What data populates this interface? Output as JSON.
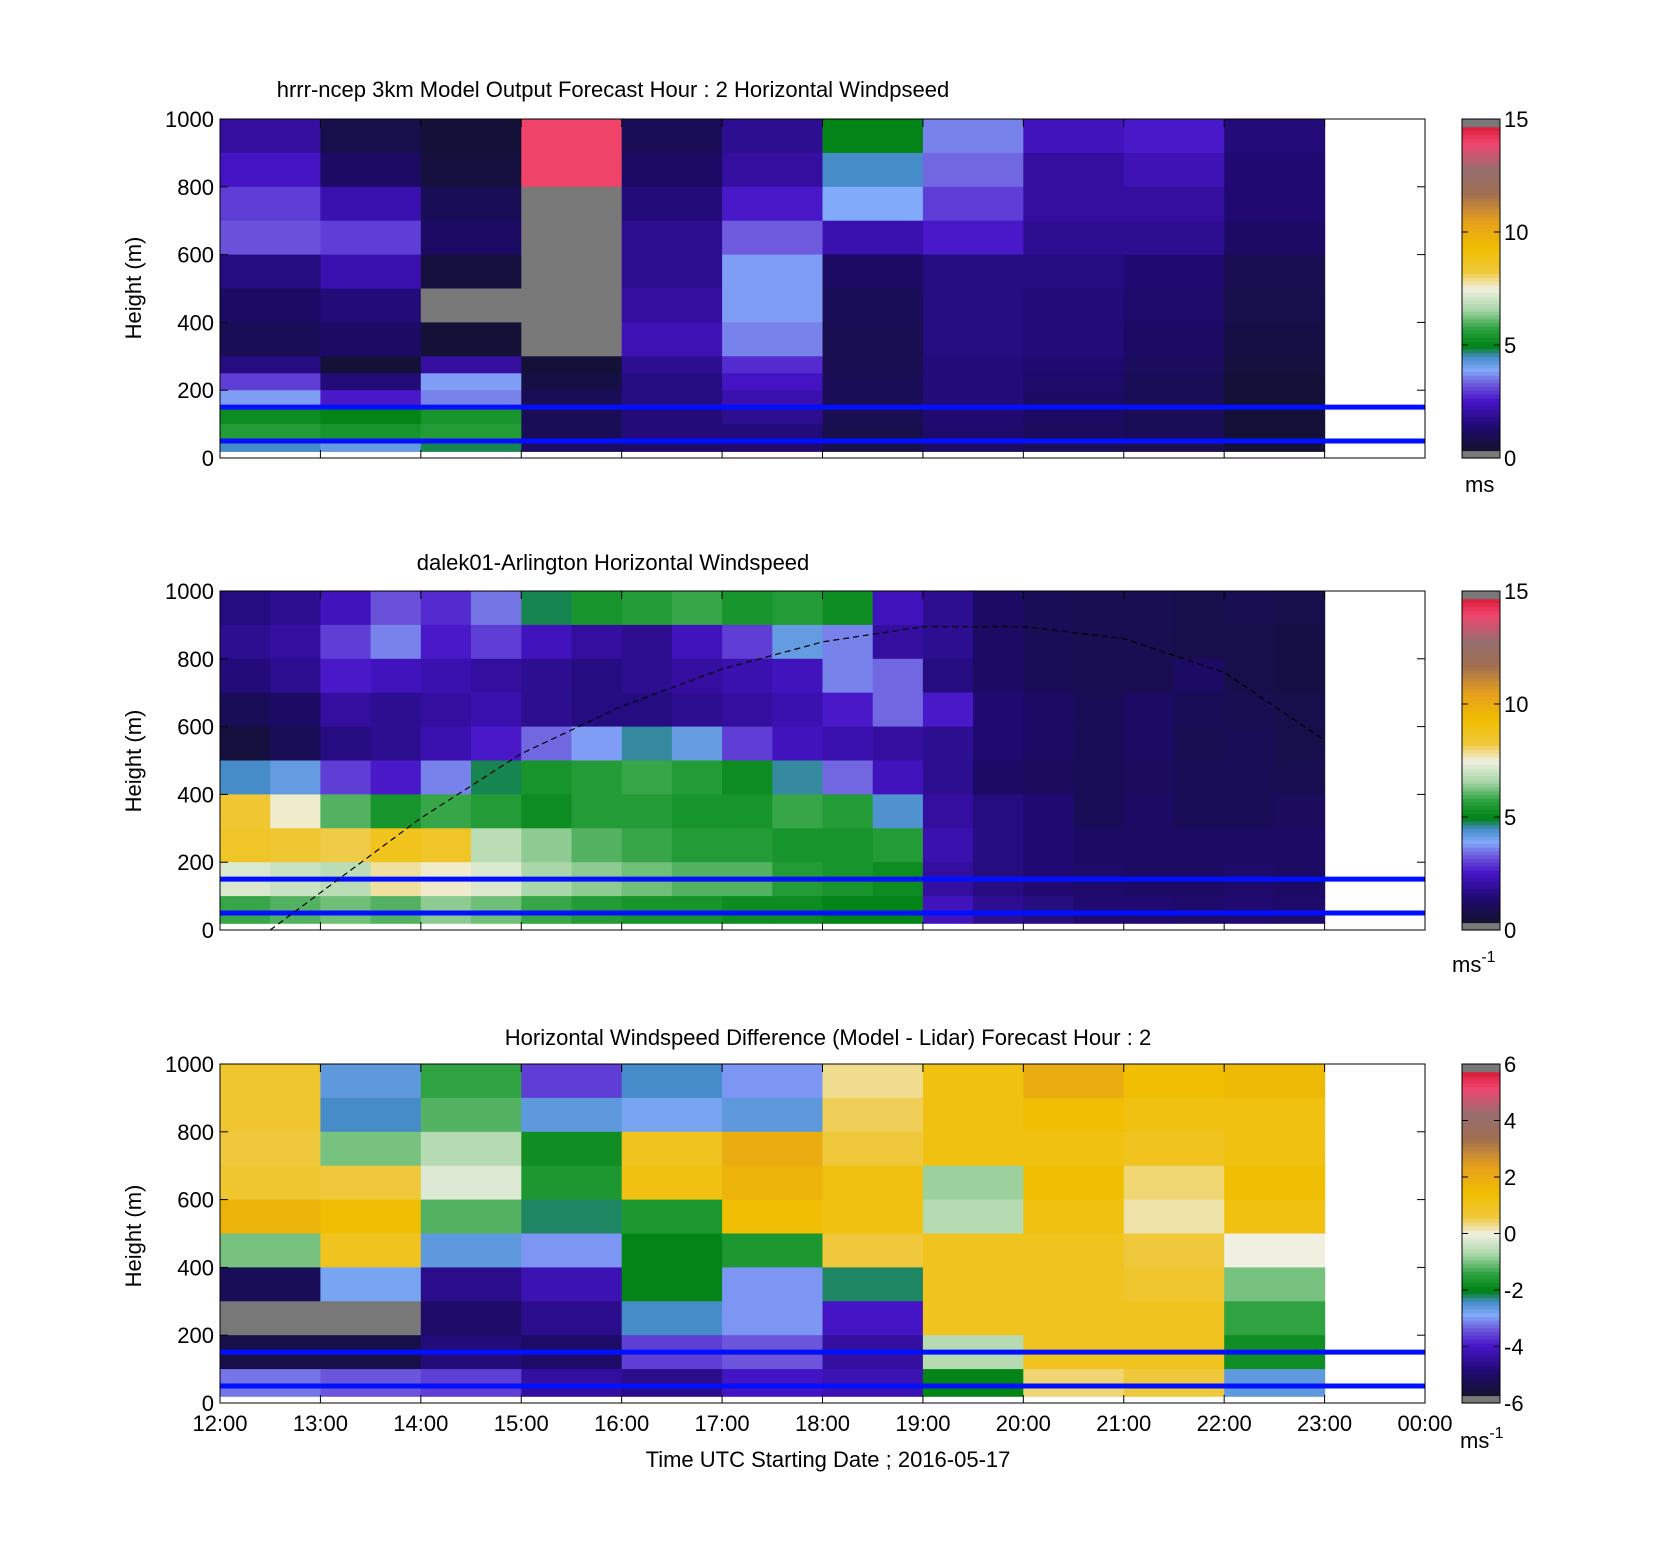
{
  "figure": {
    "xlabel": "Time UTC  Starting Date ; 2016-05-17",
    "xtick_labels": [
      "12:00",
      "13:00",
      "14:00",
      "15:00",
      "16:00",
      "17:00",
      "18:00",
      "19:00",
      "20:00",
      "21:00",
      "22:00",
      "23:00",
      "00:00"
    ]
  },
  "chart_data": [
    {
      "type": "heatmap",
      "title": "hrrr-ncep 3km Model Output   Forecast Hour : 2 Horizontal Windpseed",
      "ylabel": "Height (m)",
      "x": [
        "12:00",
        "13:00",
        "14:00",
        "15:00",
        "16:00",
        "17:00",
        "18:00",
        "19:00",
        "20:00",
        "21:00",
        "22:00"
      ],
      "y_bin_tops_m": [
        1000,
        900,
        800,
        700,
        600,
        500,
        400,
        300,
        250,
        200,
        150,
        100,
        50
      ],
      "values_ms": [
        [
          2.0,
          0.8,
          0.5,
          14.0,
          1.0,
          1.8,
          5.0,
          3.6,
          2.4,
          2.6,
          1.5
        ],
        [
          2.5,
          1.2,
          0.6,
          14.0,
          1.2,
          2.0,
          4.5,
          3.4,
          2.0,
          2.3,
          1.4
        ],
        [
          3.0,
          2.2,
          1.0,
          0.2,
          1.5,
          2.6,
          3.9,
          3.0,
          2.0,
          2.0,
          1.4
        ],
        [
          3.2,
          3.0,
          1.2,
          0.3,
          1.8,
          3.3,
          2.2,
          2.6,
          1.8,
          1.8,
          1.2
        ],
        [
          1.6,
          2.2,
          0.6,
          0.3,
          1.8,
          3.8,
          1.2,
          1.6,
          1.6,
          1.4,
          0.9
        ],
        [
          1.2,
          1.5,
          0.3,
          0.2,
          2.0,
          3.8,
          1.0,
          1.6,
          1.5,
          1.3,
          0.8
        ],
        [
          1.0,
          1.2,
          0.5,
          0.1,
          2.3,
          3.6,
          0.9,
          1.6,
          1.5,
          1.2,
          0.7
        ],
        [
          1.6,
          0.5,
          2.0,
          0.5,
          1.8,
          2.8,
          0.9,
          1.5,
          1.4,
          1.1,
          0.6
        ],
        [
          3.0,
          1.5,
          3.8,
          0.7,
          1.6,
          2.5,
          1.0,
          1.5,
          1.3,
          1.0,
          0.5
        ],
        [
          3.8,
          2.6,
          3.6,
          1.0,
          1.6,
          2.2,
          1.0,
          1.5,
          1.2,
          1.0,
          0.5
        ],
        [
          5.2,
          5.0,
          5.4,
          1.0,
          1.5,
          1.8,
          0.9,
          1.4,
          1.2,
          1.0,
          0.5
        ],
        [
          5.6,
          5.4,
          5.6,
          1.0,
          1.5,
          1.5,
          0.8,
          1.3,
          1.1,
          1.0,
          0.5
        ],
        [
          4.5,
          4.2,
          4.8,
          1.2,
          1.3,
          1.4,
          0.8,
          1.2,
          1.0,
          0.9,
          0.5
        ]
      ],
      "colorbar": {
        "min": 0,
        "max": 15,
        "ticks": [
          0,
          5,
          10,
          15
        ],
        "unit": "ms"
      },
      "reference_heights_m": [
        150,
        50
      ],
      "ylim": [
        0,
        1000
      ],
      "yticks": [
        0,
        200,
        400,
        600,
        800,
        1000
      ]
    },
    {
      "type": "heatmap",
      "title": "dalek01-Arlington  Horizontal Windspeed",
      "ylabel": "Height (m)",
      "x_range": [
        "12:00",
        "23:00"
      ],
      "y_bin_tops_m": [
        1000,
        900,
        800,
        700,
        600,
        500,
        400,
        300,
        200,
        100
      ],
      "x_bins": [
        "12:00",
        "12:30",
        "13:00",
        "13:30",
        "14:00",
        "14:30",
        "15:00",
        "15:30",
        "16:00",
        "16:30",
        "17:00",
        "17:30",
        "18:00",
        "18:30",
        "19:00",
        "19:30",
        "20:00",
        "20:30",
        "21:00",
        "21:30",
        "22:00",
        "22:30"
      ],
      "values_ms": [
        [
          1.6,
          1.8,
          2.4,
          3.2,
          2.8,
          3.5,
          4.8,
          5.4,
          5.6,
          5.8,
          5.4,
          5.6,
          5.2,
          2.4,
          1.8,
          1.2,
          1.0,
          0.9,
          0.9,
          0.8,
          0.9,
          0.8
        ],
        [
          1.8,
          2.0,
          3.0,
          3.6,
          2.6,
          3.0,
          2.4,
          2.0,
          1.8,
          2.4,
          3.0,
          4.2,
          3.6,
          2.0,
          1.8,
          1.2,
          1.0,
          0.9,
          0.9,
          0.8,
          0.8,
          0.7
        ],
        [
          1.5,
          1.8,
          2.6,
          2.4,
          2.2,
          2.0,
          1.8,
          1.6,
          1.8,
          2.0,
          2.2,
          2.4,
          3.6,
          3.4,
          1.6,
          1.2,
          1.0,
          0.9,
          0.9,
          1.2,
          0.8,
          0.7
        ],
        [
          1.0,
          1.2,
          2.0,
          1.8,
          2.0,
          2.2,
          1.8,
          1.6,
          1.6,
          1.8,
          2.0,
          2.2,
          2.6,
          3.4,
          2.6,
          1.4,
          1.2,
          1.0,
          1.2,
          1.0,
          0.9,
          0.8
        ],
        [
          0.6,
          1.0,
          1.6,
          1.8,
          2.2,
          2.6,
          3.4,
          3.8,
          4.6,
          4.2,
          3.0,
          2.4,
          2.2,
          2.0,
          1.8,
          1.4,
          1.2,
          1.0,
          1.2,
          0.9,
          1.0,
          0.8
        ],
        [
          4.5,
          4.2,
          3.0,
          2.6,
          3.6,
          4.8,
          5.4,
          5.6,
          5.8,
          5.6,
          5.2,
          4.6,
          3.4,
          2.4,
          1.8,
          1.2,
          1.1,
          1.0,
          1.1,
          1.0,
          1.0,
          0.9
        ],
        [
          8.4,
          7.6,
          6.0,
          5.4,
          5.8,
          5.6,
          5.2,
          5.6,
          5.6,
          5.4,
          5.4,
          5.8,
          5.6,
          4.4,
          2.0,
          1.6,
          1.4,
          1.0,
          1.2,
          1.0,
          1.0,
          1.1
        ],
        [
          8.6,
          8.4,
          8.2,
          8.8,
          8.6,
          6.8,
          6.4,
          6.0,
          5.8,
          5.6,
          5.6,
          5.4,
          5.4,
          5.6,
          2.2,
          1.6,
          1.4,
          1.2,
          1.2,
          1.2,
          1.2,
          1.2
        ],
        [
          7.2,
          7.0,
          6.8,
          7.8,
          7.6,
          7.2,
          6.6,
          6.4,
          6.2,
          6.0,
          6.0,
          5.6,
          5.4,
          5.2,
          2.0,
          1.6,
          1.4,
          1.3,
          1.2,
          1.2,
          1.3,
          1.2
        ],
        [
          5.8,
          6.0,
          6.2,
          6.0,
          6.4,
          6.2,
          5.8,
          5.6,
          5.4,
          5.4,
          5.2,
          5.2,
          5.0,
          5.0,
          2.4,
          1.8,
          1.6,
          1.4,
          1.4,
          1.3,
          1.4,
          1.3
        ]
      ],
      "colorbar": {
        "min": 0,
        "max": 15,
        "ticks": [
          0,
          5,
          10,
          15
        ],
        "unit": "ms",
        "unit_exponent": "-1"
      },
      "reference_heights_m": [
        150,
        50
      ],
      "curve": {
        "style": "dashed",
        "x": [
          "12:30",
          "13:00",
          "14:00",
          "15:00",
          "16:00",
          "17:00",
          "18:00",
          "19:00",
          "20:00",
          "21:00",
          "22:00",
          "23:00"
        ],
        "y_m": [
          0,
          110,
          330,
          520,
          660,
          770,
          850,
          895,
          895,
          860,
          760,
          560
        ]
      },
      "ylim": [
        0,
        1000
      ],
      "yticks": [
        0,
        200,
        400,
        600,
        800,
        1000
      ]
    },
    {
      "type": "heatmap",
      "title": "Horizontal Windspeed Difference (Model - Lidar) Forecast Hour : 2",
      "ylabel": "Height (m)",
      "x": [
        "12:00",
        "13:00",
        "14:00",
        "15:00",
        "16:00",
        "17:00",
        "18:00",
        "19:00",
        "20:00",
        "21:00",
        "22:00"
      ],
      "y_bin_tops_m": [
        1000,
        900,
        800,
        700,
        600,
        500,
        400,
        300,
        200,
        100
      ],
      "values_ms": [
        [
          0.8,
          -2.6,
          -1.4,
          -3.6,
          -2.4,
          -3.0,
          0.3,
          1.2,
          2.0,
          1.4,
          1.6
        ],
        [
          0.8,
          -2.4,
          -1.2,
          -2.6,
          -2.8,
          -2.6,
          0.5,
          1.2,
          1.4,
          1.2,
          1.2
        ],
        [
          0.6,
          -1.0,
          -0.6,
          -1.8,
          1.0,
          2.0,
          0.6,
          1.2,
          1.2,
          1.0,
          1.2
        ],
        [
          0.8,
          0.6,
          -0.2,
          -1.6,
          1.2,
          1.8,
          1.2,
          -0.8,
          1.4,
          0.4,
          1.4
        ],
        [
          1.8,
          1.4,
          -1.2,
          -2.2,
          -1.6,
          1.4,
          1.2,
          -0.6,
          1.2,
          0.2,
          1.2
        ],
        [
          -1.0,
          1.0,
          -2.6,
          -3.0,
          -2.0,
          -1.6,
          0.6,
          1.0,
          1.0,
          0.6,
          0.0
        ],
        [
          -5.2,
          -2.8,
          -4.6,
          -4.2,
          -2.0,
          -3.0,
          -2.2,
          1.0,
          1.0,
          0.8,
          -1.0
        ],
        [
          6.0,
          6.0,
          -5.0,
          -4.6,
          -2.4,
          -3.0,
          -4.0,
          1.0,
          1.0,
          1.0,
          -1.4
        ],
        [
          -5.4,
          -5.4,
          -4.8,
          -5.0,
          -3.6,
          -3.4,
          -4.4,
          -0.6,
          1.0,
          1.0,
          -1.8
        ],
        [
          -3.2,
          -3.4,
          -3.6,
          -4.4,
          -4.6,
          -4.0,
          -4.2,
          -2.0,
          0.4,
          0.6,
          -2.6
        ]
      ],
      "colorbar": {
        "min": -6,
        "max": 6,
        "ticks": [
          -6,
          -4,
          -2,
          0,
          2,
          4,
          6
        ],
        "unit": "ms",
        "unit_exponent": "-1"
      },
      "reference_heights_m": [
        150,
        50
      ],
      "ylim": [
        0,
        1000
      ],
      "yticks": [
        0,
        200,
        400,
        600,
        800,
        1000
      ]
    }
  ]
}
